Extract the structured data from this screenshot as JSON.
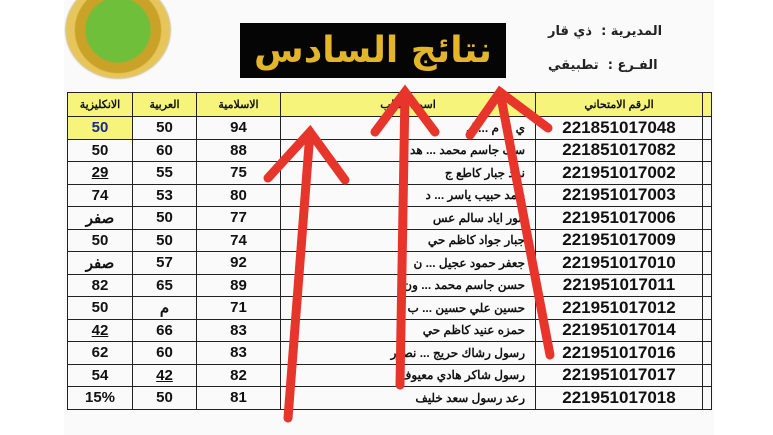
{
  "header": {
    "title": "نتائج السادس",
    "directorate_label": "المديرية :",
    "directorate_value": "ذي قار",
    "branch_label": "الفـرع :",
    "branch_value": "تطبيقي"
  },
  "table": {
    "columns": [
      "الانكليزية",
      "العربية",
      "الاسلامية",
      "اسم الطالب",
      "الرقم الامتحاني"
    ],
    "rows": [
      {
        "english": "50",
        "arabic": "50",
        "islamic": "94",
        "name": "ي ... م ... ل",
        "exam_no": "221851017048"
      },
      {
        "english": "50",
        "arabic": "60",
        "islamic": "88",
        "name": "سف جاسم محمد ... هد",
        "exam_no": "221851017082"
      },
      {
        "english": "29",
        "arabic": "55",
        "islamic": "75",
        "name": "نمد جبار كاطع ج",
        "exam_no": "221951017002"
      },
      {
        "english": "74",
        "arabic": "53",
        "islamic": "80",
        "name": "حمد حبيب ياسر ... د",
        "exam_no": "221951017003"
      },
      {
        "english": "صفر",
        "arabic": "50",
        "islamic": "77",
        "name": "انور اياد سالم عس",
        "exam_no": "221951017006"
      },
      {
        "english": "50",
        "arabic": "50",
        "islamic": "74",
        "name": "جبار جواد كاظم حي",
        "exam_no": "221951017009"
      },
      {
        "english": "صفر",
        "arabic": "57",
        "islamic": "92",
        "name": "جعفر حمود عجيل ... ن",
        "exam_no": "221951017010"
      },
      {
        "english": "82",
        "arabic": "65",
        "islamic": "89",
        "name": "حسن جاسم محمد ... ون",
        "exam_no": "221951017011"
      },
      {
        "english": "50",
        "arabic": "م",
        "islamic": "71",
        "name": "حسين علي حسين ... ب",
        "exam_no": "221951017012"
      },
      {
        "english": "42",
        "arabic": "66",
        "islamic": "83",
        "name": "حمزه عنيد كاظم حي",
        "exam_no": "221951017014"
      },
      {
        "english": "62",
        "arabic": "60",
        "islamic": "83",
        "name": "رسول رشاك حريج ... نصور",
        "exam_no": "221951017016"
      },
      {
        "english": "54",
        "arabic": "42",
        "islamic": "82",
        "name": "رسول شاكر هادي معيوف",
        "exam_no": "221951017017"
      },
      {
        "english": "15%",
        "arabic": "50",
        "islamic": "81",
        "name": "رعد رسول سعد خليف",
        "exam_no": "221951017018"
      }
    ]
  },
  "colors": {
    "header_fill": "#f6f47a",
    "title_bg": "#050505",
    "title_text": "#e3b52a",
    "arrow": "#e8352b"
  }
}
